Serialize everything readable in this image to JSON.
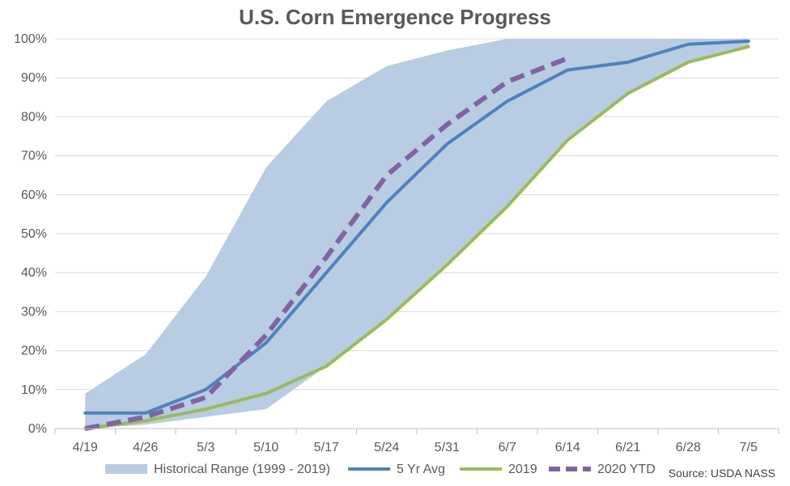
{
  "chart_data": {
    "type": "line",
    "title": "U.S. Corn Emergence Progress",
    "categories": [
      "4/19",
      "4/26",
      "5/3",
      "5/10",
      "5/17",
      "5/24",
      "5/31",
      "6/7",
      "6/14",
      "6/21",
      "6/28",
      "7/5"
    ],
    "yticks": [
      "0%",
      "10%",
      "20%",
      "30%",
      "40%",
      "50%",
      "60%",
      "70%",
      "80%",
      "90%",
      "100%"
    ],
    "ylim": [
      0,
      100
    ],
    "grid": true,
    "legend_position": "bottom",
    "range": {
      "name": "Historical Range (1999 - 2019)",
      "color": "#b8cce4",
      "low": [
        0,
        1,
        3,
        5,
        16,
        28,
        42,
        57,
        74,
        86,
        94,
        98
      ],
      "high": [
        9,
        19,
        39,
        67,
        84,
        93,
        97,
        100,
        100,
        100,
        100,
        100
      ]
    },
    "series": [
      {
        "name": "5 Yr Avg",
        "color": "#4f81bd",
        "dashed": false,
        "values": [
          4,
          4,
          10,
          22,
          40,
          58,
          73,
          84,
          92,
          94,
          98.6,
          99.4
        ]
      },
      {
        "name": "2019",
        "color": "#9bbb59",
        "dashed": false,
        "values": [
          0,
          2,
          5,
          9,
          16,
          28,
          42,
          57,
          74,
          86,
          94,
          98
        ]
      },
      {
        "name": "2020 YTD",
        "color": "#8064a2",
        "dashed": true,
        "values": [
          0,
          3,
          8,
          24,
          44,
          65,
          78,
          89,
          95,
          null,
          null,
          null
        ]
      }
    ],
    "source": "Source: USDA NASS"
  }
}
